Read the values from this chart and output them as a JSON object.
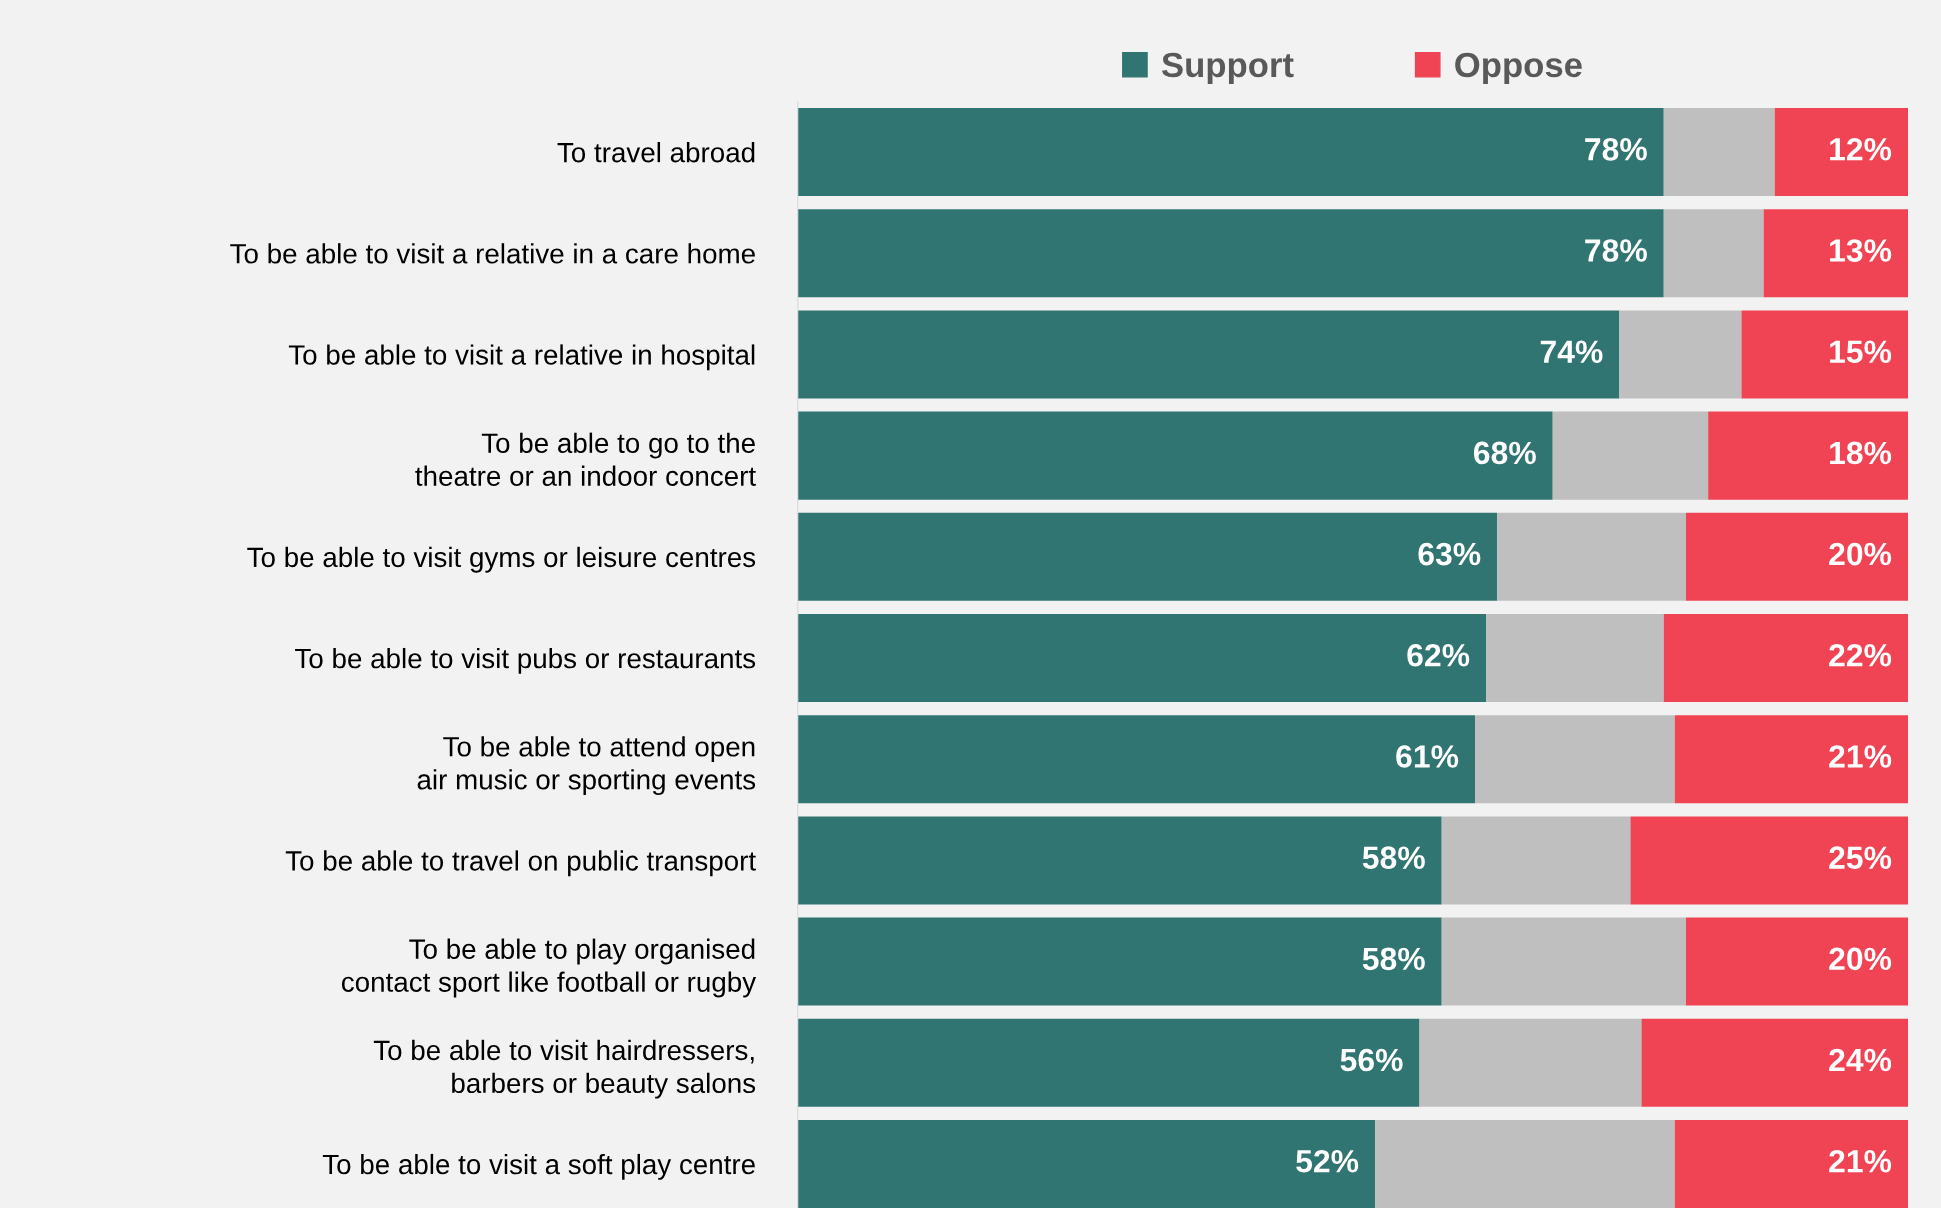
{
  "chart_data": {
    "type": "bar",
    "orientation": "horizontal",
    "stacked": true,
    "legend": "top",
    "categories": [
      "To travel abroad",
      "To be able to visit a relative in a care home",
      "To be able to visit a relative in hospital",
      "To be able to go to the\ntheatre or an indoor concert",
      "To be able to visit gyms or leisure centres",
      "To be able to visit pubs or restaurants",
      "To be able to attend open\nair music or sporting events",
      "To be able to travel on public transport",
      "To be able to play organised\ncontact sport like football or rugby",
      "To be able to visit hairdressers,\nbarbers or beauty salons",
      "To be able to visit a soft play centre"
    ],
    "series": [
      {
        "name": "Support",
        "color": "#317572",
        "values": [
          78,
          78,
          74,
          68,
          63,
          62,
          61,
          58,
          58,
          56,
          52
        ],
        "value_labels": [
          "78%",
          "78%",
          "74%",
          "68%",
          "63%",
          "62%",
          "61%",
          "58%",
          "58%",
          "56%",
          "52%"
        ]
      },
      {
        "color": "#bfbfbf",
        "values": [
          10,
          9,
          11,
          14,
          17,
          16,
          18,
          17,
          22,
          20,
          27
        ]
      },
      {
        "name": "Oppose",
        "color": "#f04455",
        "values": [
          12,
          13,
          15,
          18,
          20,
          22,
          21,
          25,
          20,
          24,
          21
        ],
        "value_labels": [
          "12%",
          "13%",
          "15%",
          "18%",
          "20%",
          "22%",
          "21%",
          "25%",
          "20%",
          "24%",
          "21%"
        ]
      }
    ]
  }
}
